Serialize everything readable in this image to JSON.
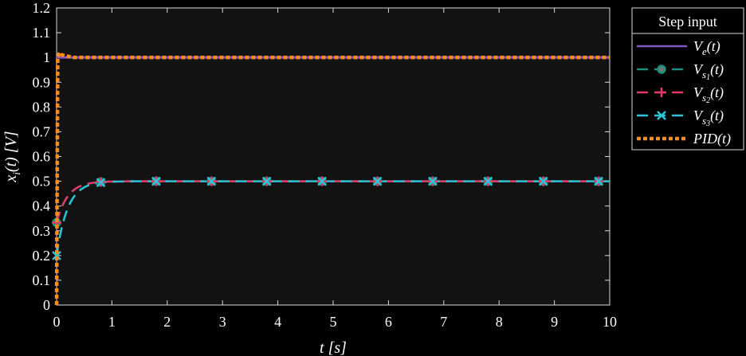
{
  "chart_data": {
    "type": "line",
    "xlabel": "t [s]",
    "ylabel": "x_i(t) [V]",
    "xlim": [
      0,
      10
    ],
    "ylim": [
      0,
      1.2
    ],
    "xticks": [
      "0",
      "1",
      "2",
      "3",
      "4",
      "5",
      "6",
      "7",
      "8",
      "9",
      "10"
    ],
    "yticks": [
      "0",
      "0.1",
      "0.2",
      "0.3",
      "0.4",
      "0.5",
      "0.6",
      "0.7",
      "0.8",
      "0.9",
      "1",
      "1.1",
      "1.2"
    ],
    "grid": false,
    "legend": {
      "title": "Step input",
      "placement": "right-outside-top",
      "entries": [
        {
          "main": "V",
          "sub": "e",
          "suffix": "(t)",
          "color": "#7e57c2",
          "dash": "solid",
          "marker": "none"
        },
        {
          "main": "V",
          "sub": "s1",
          "suffix": "(t)",
          "color": "#1a8f7a",
          "dash": "dash",
          "marker": "circle"
        },
        {
          "main": "V",
          "sub": "s2",
          "suffix": "(t)",
          "color": "#e03a68",
          "dash": "dash",
          "marker": "plus"
        },
        {
          "main": "V",
          "sub": "s3",
          "suffix": "(t)",
          "color": "#2ec4d6",
          "dash": "dash",
          "marker": "x"
        },
        {
          "main": "PID",
          "sub": "",
          "suffix": "(t)",
          "color": "#ff8c1a",
          "dash": "dotted",
          "marker": "none"
        }
      ]
    },
    "series": [
      {
        "name": "Ve(t)",
        "x": [
          0,
          10
        ],
        "y": [
          1,
          1
        ]
      },
      {
        "name": "Vs1(t)",
        "x": [
          0,
          0.8,
          1.8,
          2.8,
          3.8,
          4.8,
          5.8,
          6.8,
          7.8,
          8.8,
          9.8,
          10
        ],
        "y": [
          0.333,
          0.49,
          0.5,
          0.5,
          0.5,
          0.5,
          0.5,
          0.5,
          0.5,
          0.5,
          0.5,
          0.5
        ],
        "tau": 0.2,
        "y0": 0.333,
        "yinf": 0.5,
        "marker_x": [
          0,
          0.8,
          1.8,
          2.8,
          3.8,
          4.8,
          5.8,
          6.8,
          7.8,
          8.8,
          9.8
        ]
      },
      {
        "name": "Vs2(t)",
        "x": [
          0,
          0.8,
          1.8,
          2.8,
          3.8,
          4.8,
          5.8,
          6.8,
          7.8,
          8.8,
          9.8,
          10
        ],
        "y": [
          0.333,
          0.49,
          0.5,
          0.5,
          0.5,
          0.5,
          0.5,
          0.5,
          0.5,
          0.5,
          0.5,
          0.5
        ],
        "tau": 0.2,
        "y0": 0.333,
        "yinf": 0.5,
        "marker_x": [
          0,
          0.8,
          1.8,
          2.8,
          3.8,
          4.8,
          5.8,
          6.8,
          7.8,
          8.8,
          9.8
        ]
      },
      {
        "name": "Vs3(t)",
        "x": [
          0,
          0.8,
          1.8,
          2.8,
          3.8,
          4.8,
          5.8,
          6.8,
          7.8,
          8.8,
          9.8,
          10
        ],
        "y": [
          0.2,
          0.49,
          0.5,
          0.5,
          0.5,
          0.5,
          0.5,
          0.5,
          0.5,
          0.5,
          0.5,
          0.5
        ],
        "tau": 0.2,
        "y0": 0.2,
        "yinf": 0.5,
        "marker_x": [
          0,
          0.8,
          1.8,
          2.8,
          3.8,
          4.8,
          5.8,
          6.8,
          7.8,
          8.8,
          9.8
        ]
      },
      {
        "name": "PID(t)",
        "x": [
          0,
          0.02,
          0.05,
          0.1,
          0.3,
          0.6,
          10
        ],
        "y": [
          0,
          1,
          1.02,
          1.01,
          1.0,
          1.0,
          1.0
        ]
      }
    ]
  }
}
